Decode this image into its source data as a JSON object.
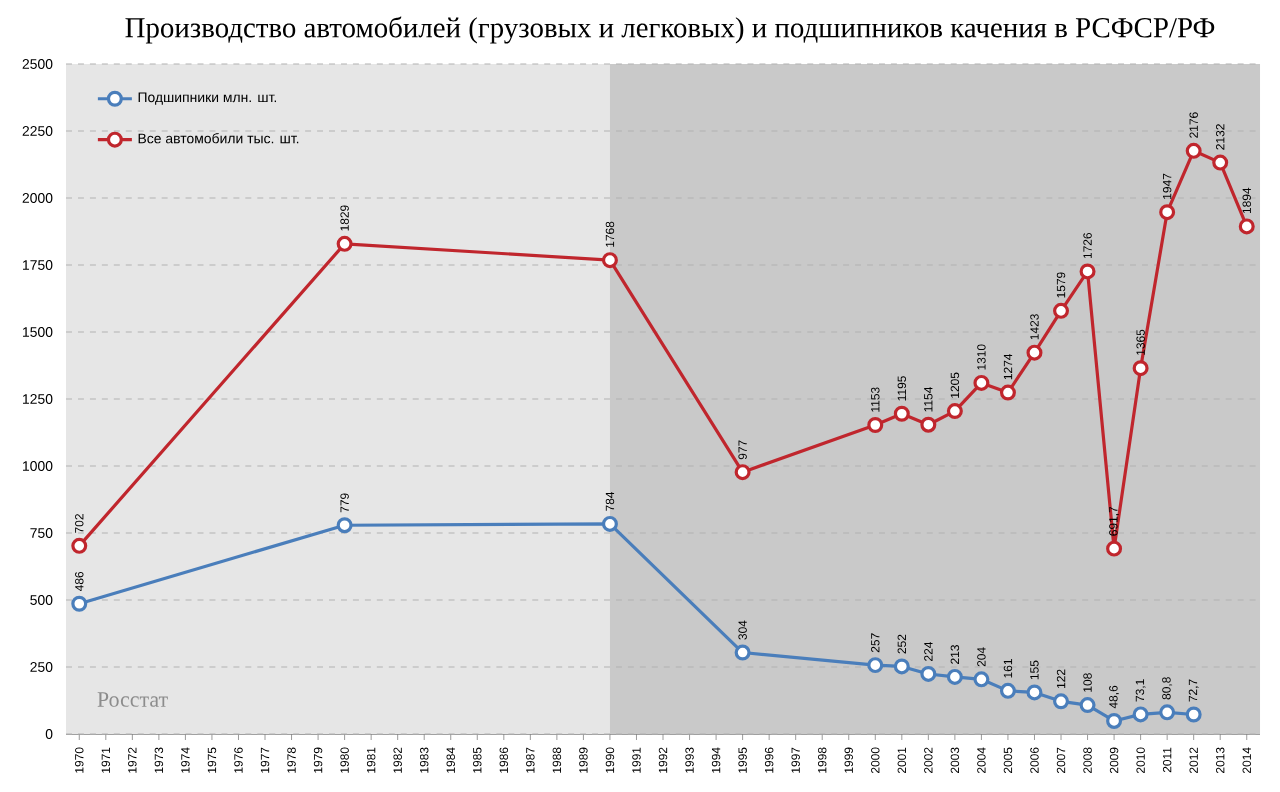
{
  "chart_data": {
    "type": "line",
    "title": "Производство автомобилей (грузовых и легковых) и подшипников качения в РСФСР/РФ",
    "xlim": [
      1969.5,
      2014.5
    ],
    "xticks": [
      1970,
      1971,
      1972,
      1973,
      1974,
      1975,
      1976,
      1977,
      1978,
      1979,
      1980,
      1981,
      1982,
      1983,
      1984,
      1985,
      1986,
      1987,
      1988,
      1989,
      1990,
      1991,
      1992,
      1993,
      1994,
      1995,
      1996,
      1997,
      1998,
      1999,
      2000,
      2001,
      2002,
      2003,
      2004,
      2005,
      2006,
      2007,
      2008,
      2009,
      2010,
      2011,
      2012,
      2013,
      2014
    ],
    "ylim": [
      0,
      2500
    ],
    "yticks": [
      0,
      250,
      500,
      750,
      1000,
      1250,
      1500,
      1750,
      2000,
      2250,
      2500
    ],
    "grid": "y",
    "legend": "top left",
    "marker": "circle",
    "line_style": "solid",
    "bands": [
      {
        "axis": "x",
        "from": 1969.5,
        "to": 1990,
        "color": "#e6e6e6"
      },
      {
        "axis": "x",
        "from": 1990,
        "to": 2014.5,
        "color": "#c9c9c9"
      }
    ],
    "series": [
      {
        "name": "Подшипники млн. шт.",
        "color": "#4a7ebb",
        "x": [
          1970,
          1980,
          1990,
          1995,
          2000,
          2001,
          2002,
          2003,
          2004,
          2005,
          2006,
          2007,
          2008,
          2009,
          2010,
          2011,
          2012
        ],
        "values": [
          486,
          779,
          784,
          304,
          257,
          252,
          224,
          213,
          204,
          161,
          155,
          122,
          108,
          48.6,
          73.1,
          80.8,
          72.7
        ],
        "value_labels": [
          "486",
          "779",
          "784",
          "304",
          "257",
          "252",
          "224",
          "213",
          "204",
          "161",
          "155",
          "122",
          "108",
          "48,6",
          "73,1",
          "80,8",
          "72,7"
        ]
      },
      {
        "name": "Все автомобили тыс. шт.",
        "color": "#c0262d",
        "x": [
          1970,
          1980,
          1990,
          1995,
          2000,
          2001,
          2002,
          2003,
          2004,
          2005,
          2006,
          2007,
          2008,
          2009,
          2010,
          2011,
          2012,
          2013,
          2014
        ],
        "values": [
          702,
          1829,
          1768,
          977,
          1153,
          1195,
          1154,
          1205,
          1310,
          1274,
          1423,
          1579,
          1726,
          691.7,
          1365,
          1947,
          2176,
          2132,
          1894
        ],
        "value_labels": [
          "702",
          "1829",
          "1768",
          "977",
          "1153",
          "1195",
          "1154",
          "1205",
          "1310",
          "1274",
          "1423",
          "1579",
          "1726",
          "691,7",
          "1365",
          "1947",
          "2176",
          "2132",
          "1894"
        ]
      }
    ],
    "annotations": [
      "Росстат"
    ]
  }
}
